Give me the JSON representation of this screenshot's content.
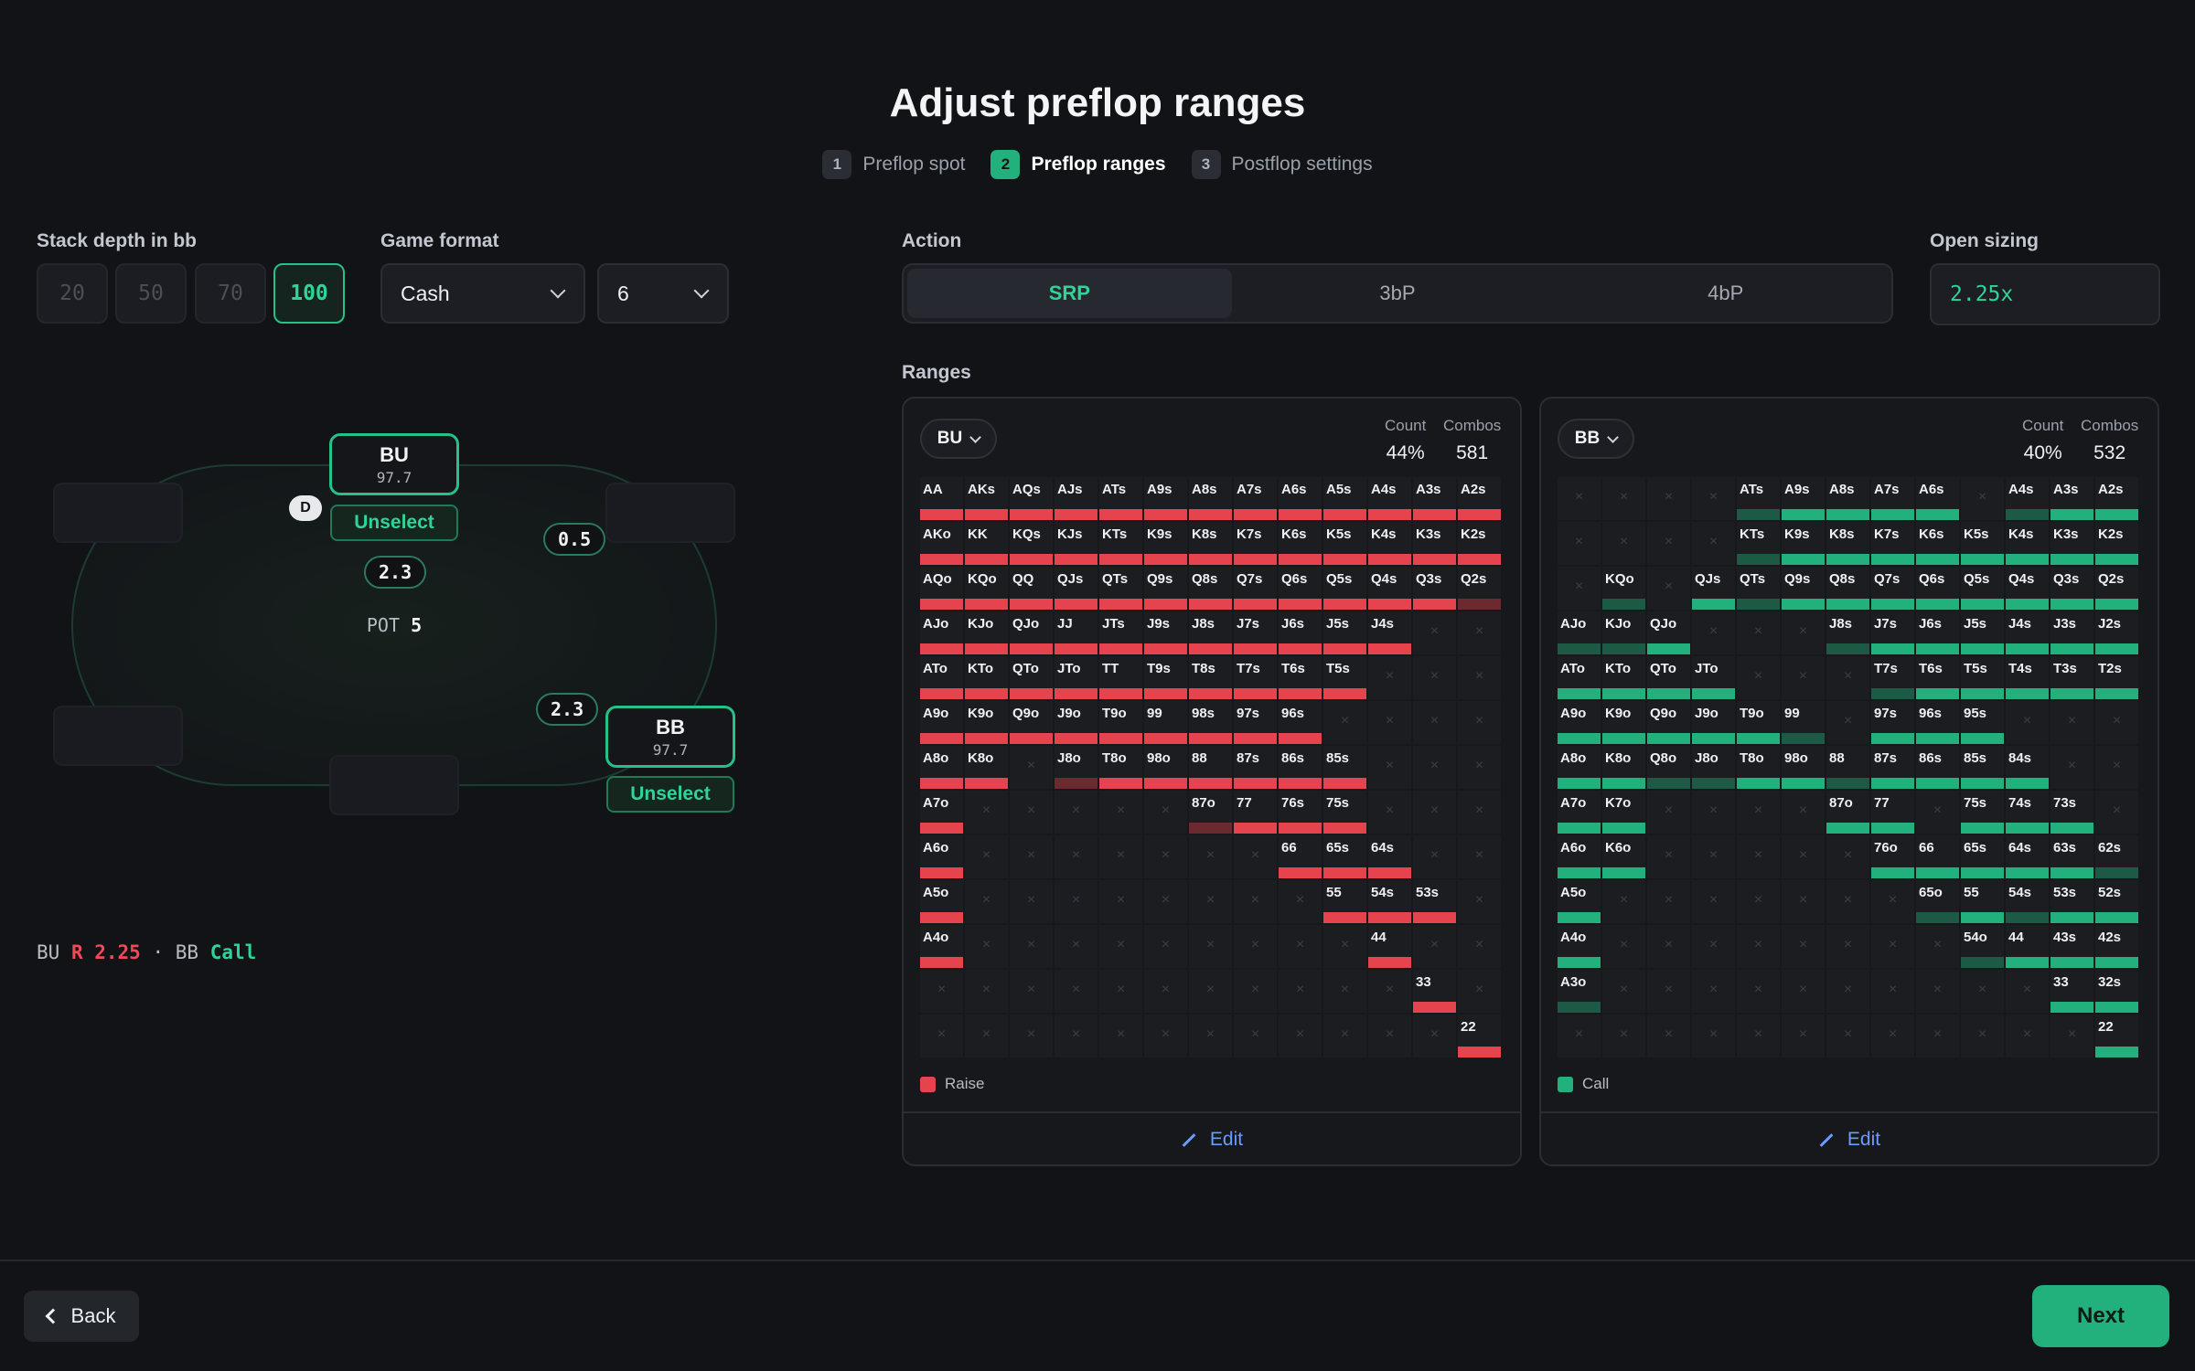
{
  "page": {
    "title": "Adjust preflop ranges"
  },
  "steps": [
    {
      "num": "1",
      "label": "Preflop spot"
    },
    {
      "num": "2",
      "label": "Preflop ranges"
    },
    {
      "num": "3",
      "label": "Postflop settings"
    }
  ],
  "stack": {
    "label": "Stack depth in bb",
    "options": [
      "20",
      "50",
      "70",
      "100"
    ],
    "selected": "100"
  },
  "game_format": {
    "label": "Game format",
    "format_value": "Cash",
    "players_value": "6"
  },
  "action": {
    "label": "Action",
    "options": [
      "SRP",
      "3bP",
      "4bP"
    ],
    "selected": "SRP"
  },
  "open_sizing": {
    "label": "Open sizing",
    "value": "2.25x"
  },
  "table": {
    "bu": {
      "name": "BU",
      "stack": "97.7",
      "unselect": "Unselect"
    },
    "bb": {
      "name": "BB",
      "stack": "97.7",
      "unselect": "Unselect"
    },
    "dealer": "D",
    "sb_chip": "0.5",
    "bu_chip": "2.3",
    "bb_chip": "2.3",
    "pot_label": "POT",
    "pot_value": "5"
  },
  "summary": {
    "p1": "BU",
    "a1": "R 2.25",
    "sep": "·",
    "p2": "BB",
    "a2": "Call"
  },
  "ranges_label": "Ranges",
  "panels": [
    {
      "position": "BU",
      "count_label": "Count",
      "count": "44%",
      "combos_label": "Combos",
      "combos": "581",
      "legend": "Raise",
      "color": "#e5444f",
      "dim": "#6b2a30",
      "edit": "Edit",
      "rows": [
        "AA:f AKs:f AQs:f AJs:f ATs:f A9s:f A8s:f A7s:f A6s:f A5s:f A4s:f A3s:f A2s:f",
        "AKo:f KK:f KQs:f KJs:f KTs:f K9s:f K8s:f K7s:f K6s:f K5s:f K4s:f K3s:f K2s:f",
        "AQo:f KQo:f QQ:f QJs:f QTs:f Q9s:f Q8s:f Q7s:f Q6s:f Q5s:f Q4s:f Q3s:f Q2s:d",
        "AJo:f KJo:f QJo:f JJ:f JTs:f J9s:f J8s:f J7s:f J6s:f J5s:f J4s:f x x",
        "ATo:f KTo:f QTo:f JTo:f TT:f T9s:f T8s:f T7s:f T6s:f T5s:f x x x",
        "A9o:f K9o:f Q9o:f J9o:f T9o:f 99:f 98s:f 97s:f 96s:f x x x x",
        "A8o:f K8o:f x J8o:d T8o:f 98o:f 88:f 87s:f 86s:f 85s:f x x x",
        "A7o:f x x x x x 87o:d 77:f 76s:f 75s:f x x x",
        "A6o:f x x x x x x x 66:f 65s:f 64s:f x x",
        "A5o:f x x x x x x x x 55:f 54s:f 53s:f x",
        "A4o:f x x x x x x x x x 44:f x x",
        "x x x x x x x x x x x 33:f x",
        "x x x x x x x x x x x x 22:f"
      ]
    },
    {
      "position": "BB",
      "count_label": "Count",
      "count": "40%",
      "combos_label": "Combos",
      "combos": "532",
      "legend": "Call",
      "color": "#22b07d",
      "dim": "#1c5a45",
      "edit": "Edit",
      "rows": [
        "x x x x ATs:d A9s:f A8s:f A7s:f A6s:f x A4s:d A3s:f A2s:f",
        "x x x x KTs:d K9s:f K8s:f K7s:f K6s:f K5s:f K4s:f K3s:f K2s:f",
        "x KQo:d x QJs:f QTs:d Q9s:f Q8s:f Q7s:f Q6s:f Q5s:f Q4s:f Q3s:f Q2s:f",
        "AJo:d KJo:d QJo:f x x x J8s:d J7s:f J6s:f J5s:f J4s:f J3s:f J2s:f",
        "ATo:f KTo:f QTo:f JTo:f x x x T7s:d T6s:f T5s:f T4s:f T3s:f T2s:f",
        "A9o:f K9o:f Q9o:f J9o:f T9o:f 99:d x 97s:f 96s:f 95s:f x x x",
        "A8o:f K8o:f Q8o:d J8o:d T8o:f 98o:f 88:d 87s:f 86s:f 85s:f 84s:f x x",
        "A7o:f K7o:f x x x x 87o:f 77:f x 75s:f 74s:f 73s:f x",
        "A6o:f K6o:f x x x x x 76o:f 66:f 65s:f 64s:f 63s:f 62s:d",
        "A5o:f x x x x x x x 65o:d 55:f 54s:d 53s:f 52s:f",
        "A4o:f x x x x x x x x 54o:d 44:f 43s:f 42s:f",
        "A3o:d x x x x x x x x x x 33:f 32s:f",
        "x x x x x x x x x x x x 22:f"
      ]
    }
  ],
  "footer": {
    "back": "Back",
    "next": "Next"
  }
}
